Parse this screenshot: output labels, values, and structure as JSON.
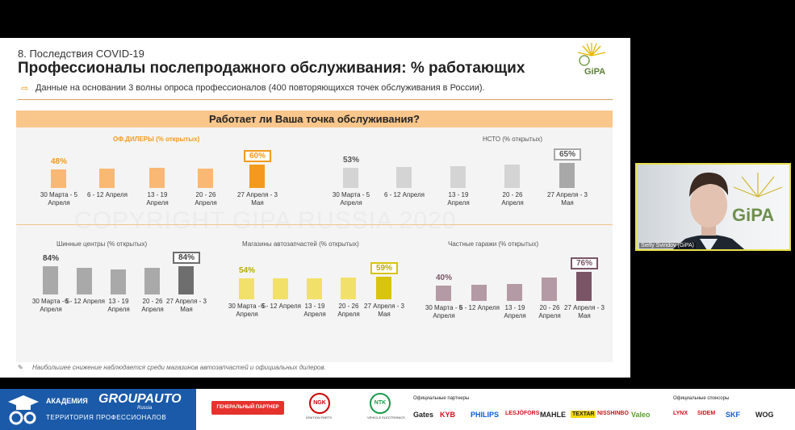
{
  "slide": {
    "section": "8. Последствия COVID-19",
    "title": "Профессионалы послепродажного обслуживания: % работающих",
    "subtitle": "Данные на основании 3 волны опроса профессионалов (400 повторяющихся точек обслуживания в России).",
    "question": "Работает ли Ваша точка обслуживания?",
    "logo_text": "GiPA",
    "watermark": "COPYRIGHT GIPA RUSSIA 2020",
    "footnote": "Наибольшее снижение наблюдается среди магазинов автозапчастей и официальных дилеров."
  },
  "chart_data": [
    {
      "type": "bar",
      "title": "ОФ.ДИЛЕРЫ (% открытых)",
      "categories": [
        "30 Марта - 5 Апреля",
        "6 - 12 Апреля",
        "13 - 19 Апреля",
        "20 - 26 Апреля",
        "27 Апреля - 3 Мая"
      ],
      "values": [
        48,
        null,
        null,
        null,
        60
      ],
      "labels": [
        "48%",
        "",
        "",
        "",
        "60%"
      ],
      "bar_values": [
        48,
        50,
        53,
        50,
        60
      ],
      "color": "#f9b874",
      "last_color": "#f39a1e",
      "label_color": "#f39a1e"
    },
    {
      "type": "bar",
      "title": "НСТО (% открытых)",
      "categories": [
        "30 Марта - 5 Апреля",
        "6 - 12 Апреля",
        "13 - 19 Апреля",
        "20 - 26 Апреля",
        "27 Апреля - 3 Мая"
      ],
      "values": [
        53,
        null,
        null,
        null,
        65
      ],
      "labels": [
        "53%",
        "",
        "",
        "",
        "65%"
      ],
      "bar_values": [
        53,
        55,
        57,
        61,
        65
      ],
      "color": "#d4d4d4",
      "last_color": "#a8a8a8",
      "label_color": "#555555"
    },
    {
      "type": "bar",
      "title": "Шинные центры (% открытых)",
      "categories": [
        "30 Марта - 5 Апреля",
        "6 - 12 Апреля",
        "13 - 19 Апреля",
        "20 - 26 Апреля",
        "27 Апреля - 3 Мая"
      ],
      "values": [
        84,
        null,
        null,
        null,
        84
      ],
      "labels": [
        "84%",
        "",
        "",
        "",
        "84%"
      ],
      "bar_values": [
        84,
        78,
        73,
        78,
        84
      ],
      "color": "#a9a9a9",
      "last_color": "#6e6e6e",
      "label_color": "#444444"
    },
    {
      "type": "bar",
      "title": "Магазины автозапчастей (% открытых)",
      "categories": [
        "30 Марта - 5 Апреля",
        "6 - 12 Апреля",
        "13 - 19 Апреля",
        "20 - 26 Апреля",
        "27 Апреля - 3 Мая"
      ],
      "values": [
        54,
        null,
        null,
        null,
        59
      ],
      "labels": [
        "54%",
        "",
        "",
        "",
        "59%"
      ],
      "bar_values": [
        54,
        54,
        54,
        56,
        59
      ],
      "color": "#f1e16a",
      "last_color": "#d9c40f",
      "label_color": "#b8a80a"
    },
    {
      "type": "bar",
      "title": "Частные гаражи (% открытых)",
      "categories": [
        "30 Марта - 5 Апреля",
        "6 - 12 Апреля",
        "13 - 19 Апреля",
        "20 - 26 Апреля",
        "27 Апреля - 3 Мая"
      ],
      "values": [
        40,
        null,
        null,
        null,
        76
      ],
      "labels": [
        "40%",
        "",
        "",
        "",
        "76%"
      ],
      "bar_values": [
        40,
        42,
        43,
        60,
        76
      ],
      "color": "#b49aa4",
      "last_color": "#7a5566",
      "label_color": "#7a5566"
    }
  ],
  "webcam": {
    "name": "Sielly Sviridov (GiPA)"
  },
  "banner": {
    "academy_line1": "АКАДЕМИЯ",
    "groupauto": "GROUPAUTO",
    "russia": "Russia",
    "academy_line2": "ТЕРРИТОРИЯ ПРОФЕССИОНАЛОВ",
    "general_partner": "ГЕНЕРАЛЬНЫЙ ПАРТНЕР",
    "ngk": "NGK",
    "ngk_sub": "IGNITION PARTS",
    "ntk": "NTK",
    "ntk_sub": "VEHICLE ELECTRONICS",
    "official_partners": "Официальные партнеры",
    "official_sponsors": "Официальные спонсоры",
    "partners": [
      "Gates",
      "KYB",
      "PHILIPS",
      "LESJÖFORS",
      "MAHLE",
      "TEXTAR",
      "NISSHINBO",
      "Valeo"
    ],
    "sponsors": [
      "LYNX",
      "SIDEM",
      "SKF",
      "WOG"
    ]
  }
}
